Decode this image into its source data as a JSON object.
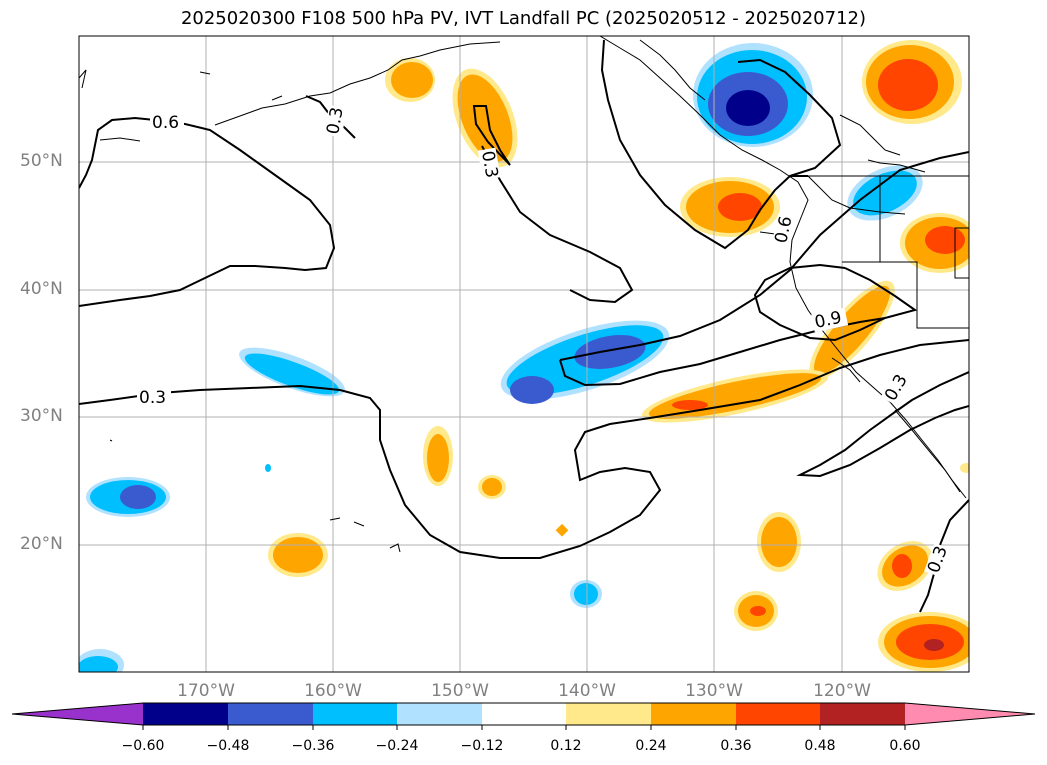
{
  "title": "2025020300 F108 500 hPa PV, IVT Landfall PC (2025020512 - 2025020712)",
  "lat_labels": [
    "50°N",
    "40°N",
    "30°N",
    "20°N"
  ],
  "lon_labels": [
    "170°W",
    "160°W",
    "150°W",
    "140°W",
    "130°W",
    "120°W"
  ],
  "contour_labels": [
    "0.6",
    "0.3",
    "0.3",
    "0.3",
    "0.6",
    "0.9",
    "0.3",
    "0.3"
  ],
  "colorbar": {
    "ticks": [
      "−0.60",
      "−0.48",
      "−0.36",
      "−0.24",
      "−0.12",
      "0.12",
      "0.24",
      "0.36",
      "0.48",
      "0.60"
    ],
    "colors": [
      "#9932cc",
      "#00008b",
      "#3a5bd0",
      "#00bfff",
      "#b0e2ff",
      "#ffffff",
      "#ffe98a",
      "#ffa500",
      "#ff4500",
      "#b22222",
      "#ff8cb0"
    ]
  },
  "colors": {
    "neg_light": "#b0e2ff",
    "neg_mid": "#00bfff",
    "neg_strong": "#3a5bd0",
    "neg_max": "#00008b",
    "pos_light": "#ffe98a",
    "pos_mid": "#ffa500",
    "pos_strong": "#ff4500",
    "pos_max": "#b22222"
  }
}
